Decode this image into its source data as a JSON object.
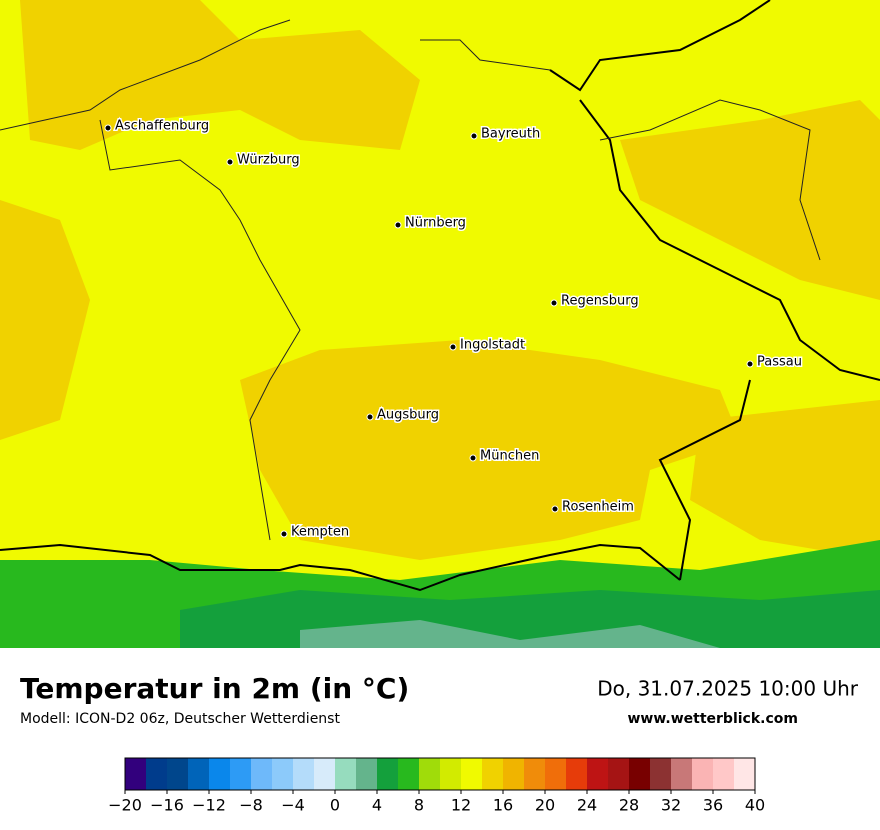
{
  "header": {
    "title": "Temperatur in 2m (in °C)",
    "subtitle": "Modell: ICON-D2 06z, Deutscher Wetterdienst",
    "datetime": "Do, 31.07.2025 10:00 Uhr",
    "website": "www.wetterblick.com"
  },
  "cities": [
    "Aschaffenburg",
    "Würzburg",
    "Bayreuth",
    "Nürnberg",
    "Regensburg",
    "Ingolstadt",
    "Passau",
    "Augsburg",
    "München",
    "Rosenheim",
    "Kempten"
  ],
  "colorbar": {
    "bins": [
      -20,
      -18,
      -16,
      -14,
      -12,
      -10,
      -8,
      -6,
      -4,
      -2,
      0,
      2,
      4,
      6,
      8,
      10,
      12,
      14,
      16,
      18,
      20,
      22,
      24,
      26,
      28,
      30,
      32,
      34,
      36,
      38,
      40
    ],
    "colors": [
      "#32007d",
      "#003c8c",
      "#00468c",
      "#0064b9",
      "#0a87eb",
      "#2d9bf5",
      "#6eb9fa",
      "#8ccafa",
      "#b4dcfa",
      "#d7ebfa",
      "#96dcbe",
      "#64b48c",
      "#14a03c",
      "#28b91e",
      "#a0dc0a",
      "#d2eb00",
      "#f0fa00",
      "#f0d200",
      "#f0b400",
      "#f08c0a",
      "#f06e0a",
      "#e63c0a",
      "#be1414",
      "#a51414",
      "#780000",
      "#8c3232",
      "#c87878",
      "#fab4b4",
      "#ffc8c8",
      "#ffe6e6"
    ],
    "ticks": [
      {
        "value": -20,
        "label": "−20"
      },
      {
        "value": -16,
        "label": "−16"
      },
      {
        "value": -12,
        "label": "−12"
      },
      {
        "value": -8,
        "label": "−8"
      },
      {
        "value": -4,
        "label": "−4"
      },
      0,
      4,
      8,
      12,
      16,
      20,
      24,
      28,
      32,
      36,
      40
    ]
  }
}
